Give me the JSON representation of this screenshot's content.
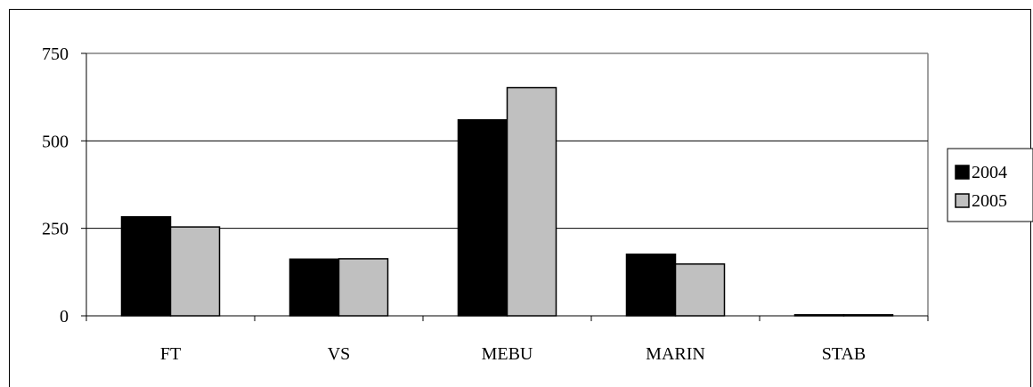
{
  "chart_data": {
    "type": "bar",
    "categories": [
      "FT",
      "VS",
      "MEBU",
      "MARIN",
      "STAB"
    ],
    "series": [
      {
        "name": "2004",
        "values": [
          283,
          162,
          560,
          176,
          3
        ],
        "color": "#000000"
      },
      {
        "name": "2005",
        "values": [
          254,
          163,
          652,
          148,
          3
        ],
        "color": "#c0c0c0"
      }
    ],
    "y_ticks": [
      "0",
      "250",
      "500",
      "750"
    ],
    "ylim": [
      0,
      750
    ],
    "grid": true,
    "legend_position": "right"
  }
}
